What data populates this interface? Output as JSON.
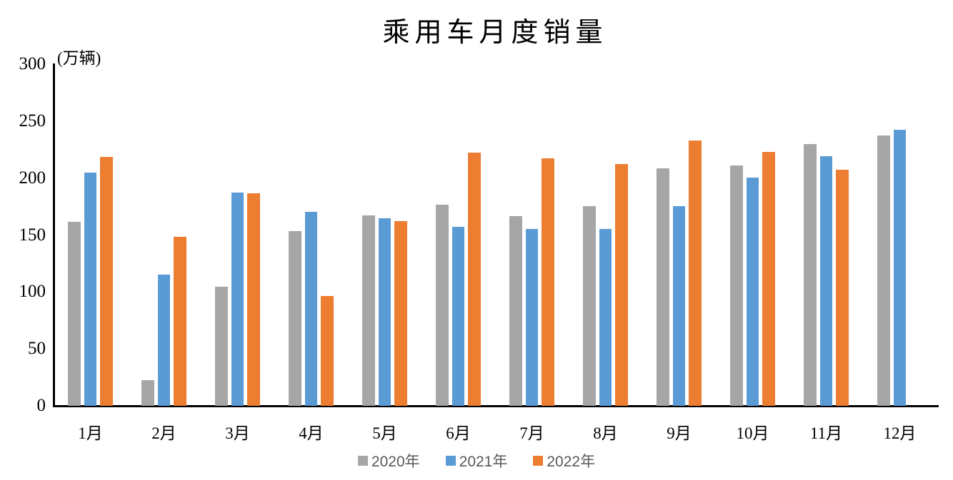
{
  "chart_data": {
    "type": "bar",
    "title": "乘用车月度销量",
    "ylabel": "(万辆)",
    "categories": [
      "1月",
      "2月",
      "3月",
      "4月",
      "5月",
      "6月",
      "7月",
      "8月",
      "9月",
      "10月",
      "11月",
      "12月"
    ],
    "series": [
      {
        "name": "2020年",
        "color": "#a6a6a6",
        "values": [
          161.4,
          22.4,
          104.3,
          153.6,
          167.4,
          176.4,
          166.5,
          175.5,
          208.8,
          211.0,
          229.7,
          237.5
        ]
      },
      {
        "name": "2021年",
        "color": "#5b9bd5",
        "values": [
          204.5,
          115.5,
          187.4,
          170.4,
          164.6,
          156.9,
          155.1,
          155.2,
          175.1,
          200.7,
          219.2,
          242.2
        ]
      },
      {
        "name": "2022年",
        "color": "#ed7d31",
        "values": [
          218.6,
          148.7,
          186.4,
          96.5,
          162.3,
          222.2,
          217.4,
          212.5,
          233.2,
          223.1,
          207.5,
          null
        ]
      }
    ],
    "ylim": [
      0,
      300
    ],
    "y_ticks": [
      0,
      50,
      100,
      150,
      200,
      250,
      300
    ],
    "grid": false,
    "legend_position": "bottom",
    "axis_color": "#000000",
    "legend_text_color": "#595959"
  }
}
